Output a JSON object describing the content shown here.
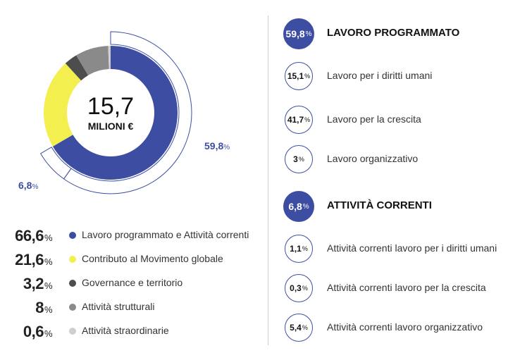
{
  "chart_data": {
    "type": "pie",
    "center_value": "15,7",
    "center_unit": "MILIONI €",
    "slices": [
      {
        "label": "Lavoro programmato e Attività correnti",
        "value": 66.6,
        "value_text": "66,6",
        "color": "#3d4ea2"
      },
      {
        "label": "Contributo al Movimento globale",
        "value": 21.6,
        "value_text": "21,6",
        "color": "#f2ef4f"
      },
      {
        "label": "Governance e territorio",
        "value": 3.2,
        "value_text": "3,2",
        "color": "#4d4d4d"
      },
      {
        "label": "Attività strutturali",
        "value": 8,
        "value_text": "8",
        "color": "#8a8a8a"
      },
      {
        "label": "Attività straordinarie",
        "value": 0.6,
        "value_text": "0,6",
        "color": "#cfcfcf"
      }
    ],
    "callouts": [
      {
        "value": 59.8,
        "value_text": "59,8"
      },
      {
        "value": 6.8,
        "value_text": "6,8"
      }
    ],
    "pct_symbol": "%"
  },
  "breakdown": {
    "groups": [
      {
        "value_text": "59,8",
        "title": "LAVORO PROGRAMMATO",
        "items": [
          {
            "value_text": "15,1",
            "label": "Lavoro per i diritti umani"
          },
          {
            "value_text": "41,7",
            "label": "Lavoro per la crescita"
          },
          {
            "value_text": "3",
            "label": "Lavoro organizzativo"
          }
        ]
      },
      {
        "value_text": "6,8",
        "title": "ATTIVITÀ CORRENTI",
        "items": [
          {
            "value_text": "1,1",
            "label": "Attività correnti lavoro per i diritti umani"
          },
          {
            "value_text": "0,3",
            "label": "Attività correnti lavoro per la crescita"
          },
          {
            "value_text": "5,4",
            "label": "Attività correnti lavoro organizzativo"
          }
        ]
      }
    ]
  },
  "colors": {
    "accent": "#3d4ea2"
  }
}
